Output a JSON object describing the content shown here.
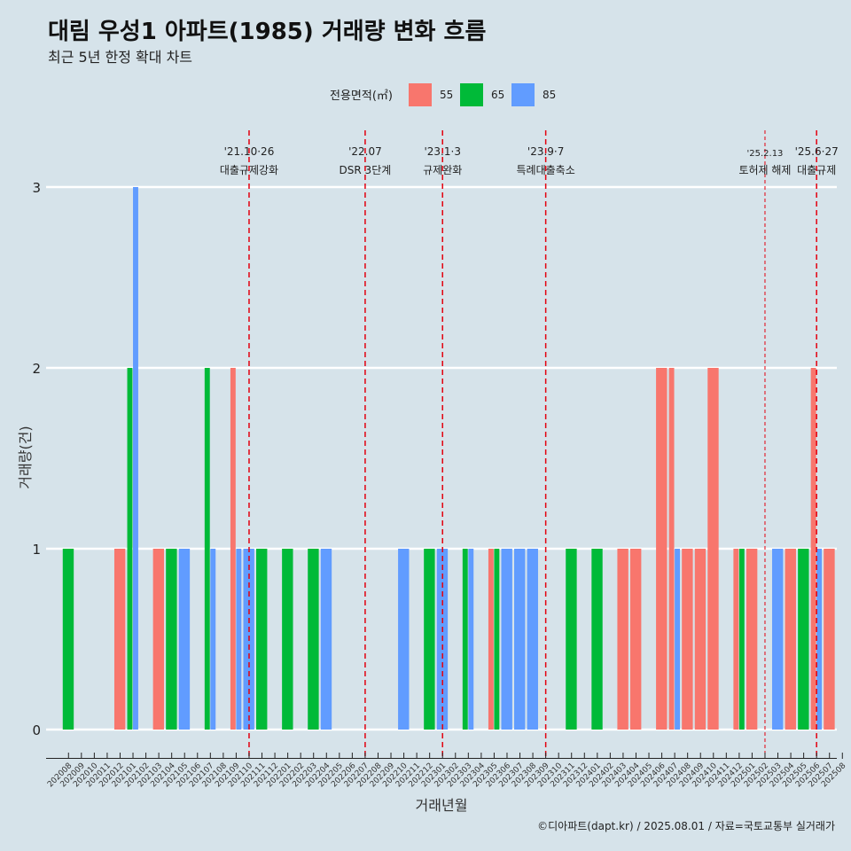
{
  "header": {
    "title": "대림 우성1 아파트(1985) 거래량 변화 흐름",
    "subtitle": "최근 5년 한정 확대 차트"
  },
  "legend": {
    "title": "전용면적(㎡)",
    "items": [
      {
        "label": "55",
        "color": "#f8766d"
      },
      {
        "label": "65",
        "color": "#00ba38"
      },
      {
        "label": "85",
        "color": "#619cff"
      }
    ]
  },
  "caption": "©디아파트(dapt.kr) / 2025.08.01 / 자료=국토교통부 실거래가",
  "chart_data": {
    "type": "bar",
    "xlabel": "거래년월",
    "ylabel": "거래량(건)",
    "ylim": [
      0,
      3
    ],
    "yticks": [
      "0",
      "1",
      "2",
      "3"
    ],
    "grid": "horizontal",
    "legend_position": "top",
    "categories": [
      "202008",
      "202009",
      "202010",
      "202011",
      "202012",
      "202101",
      "202102",
      "202103",
      "202104",
      "202105",
      "202106",
      "202107",
      "202108",
      "202109",
      "202110",
      "202111",
      "202112",
      "202201",
      "202202",
      "202203",
      "202204",
      "202205",
      "202206",
      "202207",
      "202208",
      "202209",
      "202210",
      "202211",
      "202212",
      "202301",
      "202302",
      "202303",
      "202304",
      "202305",
      "202306",
      "202307",
      "202308",
      "202309",
      "202310",
      "202311",
      "202312",
      "202401",
      "202402",
      "202403",
      "202404",
      "202405",
      "202406",
      "202407",
      "202408",
      "202409",
      "202410",
      "202411",
      "202412",
      "202501",
      "202502",
      "202503",
      "202504",
      "202505",
      "202506",
      "202507",
      "202508"
    ],
    "series": [
      {
        "name": "55",
        "color": "#f8766d",
        "values": [
          0,
          0,
          0,
          0,
          1,
          0,
          0,
          1,
          0,
          0,
          0,
          0,
          0,
          2,
          0,
          0,
          0,
          0,
          0,
          0,
          0,
          0,
          0,
          0,
          0,
          0,
          0,
          0,
          0,
          0,
          0,
          0,
          0,
          1,
          0,
          0,
          0,
          0,
          0,
          0,
          0,
          0,
          0,
          1,
          1,
          0,
          2,
          2,
          1,
          1,
          2,
          0,
          1,
          1,
          0,
          0,
          1,
          0,
          2,
          1,
          0
        ]
      },
      {
        "name": "65",
        "color": "#00ba38",
        "values": [
          1,
          0,
          0,
          0,
          0,
          2,
          0,
          0,
          1,
          0,
          0,
          2,
          0,
          0,
          0,
          1,
          0,
          1,
          0,
          1,
          0,
          0,
          0,
          0,
          0,
          0,
          0,
          0,
          1,
          0,
          0,
          1,
          0,
          1,
          0,
          0,
          0,
          0,
          0,
          1,
          0,
          1,
          0,
          0,
          0,
          0,
          0,
          0,
          0,
          0,
          0,
          0,
          1,
          0,
          0,
          0,
          0,
          1,
          0,
          0,
          0
        ]
      },
      {
        "name": "85",
        "color": "#619cff",
        "values": [
          0,
          0,
          0,
          0,
          0,
          3,
          0,
          0,
          0,
          1,
          0,
          1,
          0,
          1,
          1,
          0,
          0,
          0,
          0,
          0,
          1,
          0,
          0,
          0,
          0,
          0,
          1,
          0,
          0,
          1,
          0,
          1,
          0,
          0,
          1,
          1,
          1,
          0,
          0,
          0,
          0,
          0,
          0,
          0,
          0,
          0,
          0,
          1,
          0,
          0,
          0,
          0,
          0,
          0,
          0,
          1,
          0,
          0,
          1,
          0,
          0
        ]
      }
    ],
    "events": [
      {
        "category": "202110",
        "label_top": "'21.10·26",
        "label_bottom": "대출규제강화",
        "size": "normal"
      },
      {
        "category": "202207",
        "label_top": "'22.07",
        "label_bottom": "DSR 3단계",
        "size": "normal"
      },
      {
        "category": "202301",
        "label_top": "'23.1·3",
        "label_bottom": "규제완화",
        "size": "normal"
      },
      {
        "category": "202309",
        "label_top": "'23.9·7",
        "label_bottom": "특례대출축소",
        "size": "normal"
      },
      {
        "category": "202502",
        "label_top": "'25.2.13",
        "label_bottom": "토허제 해제",
        "size": "small"
      },
      {
        "category": "202506",
        "label_top": "'25.6·27",
        "label_bottom": "대출규제",
        "size": "normal"
      }
    ]
  }
}
